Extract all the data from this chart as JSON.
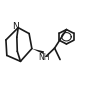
{
  "bond_color": "#1a1a1a",
  "line_width": 1.2,
  "fig_width": 0.91,
  "fig_height": 0.89,
  "dpi": 100,
  "font_size_N": 6.5,
  "font_size_NH": 5.5
}
